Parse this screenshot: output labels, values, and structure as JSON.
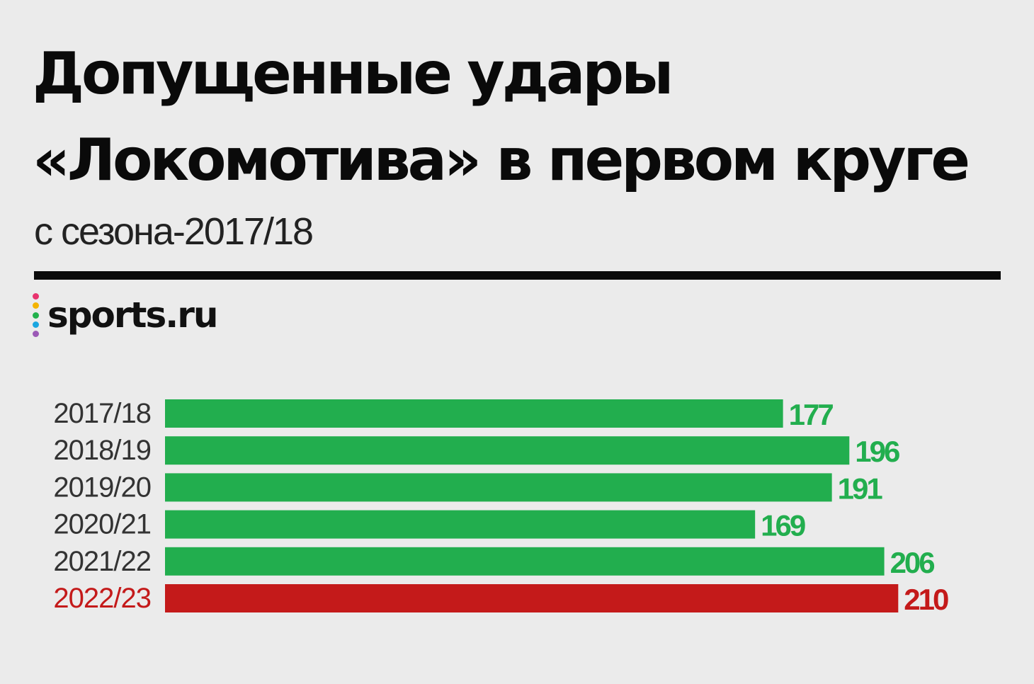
{
  "header": {
    "title_line1": "Допущенные удары",
    "title_line2": "«Локомотива» в первом круге",
    "subtitle": "с сезона-2017/18"
  },
  "brand": {
    "logo_text": "sports.ru",
    "logo_dot_colors": [
      "#e8336e",
      "#f4b400",
      "#22b14c",
      "#1aa6e0",
      "#9b59b6"
    ]
  },
  "colors": {
    "default_bar": "#22ae4e",
    "highlight_bar": "#c41a1a",
    "category_text": "#333333"
  },
  "chart_data": {
    "type": "bar",
    "orientation": "horizontal",
    "title": "Допущенные удары «Локомотива» в первом круге",
    "subtitle": "с сезона-2017/18",
    "categories": [
      "2017/18",
      "2018/19",
      "2019/20",
      "2020/21",
      "2021/22",
      "2022/23"
    ],
    "values": [
      177,
      196,
      191,
      169,
      206,
      210
    ],
    "highlight": [
      false,
      false,
      false,
      false,
      false,
      true
    ],
    "grid": false,
    "legend": "none",
    "data_labels": true
  }
}
